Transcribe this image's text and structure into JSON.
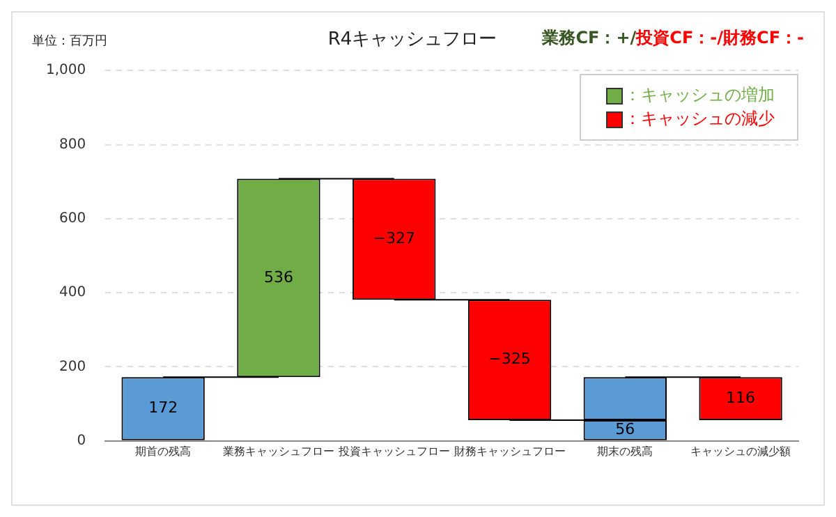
{
  "chart_data": {
    "type": "bar",
    "title": "R4キャッシュフロー",
    "ylabel": "単位：百万円",
    "annotations": [
      "業務CF：+/投資CF：-/財務CF：-"
    ],
    "categories": [
      "期首の残高",
      "業務キャッシュフロー",
      "投資キャッシュフロー",
      "財務キャッシュフロー",
      "期末の残高",
      "キャッシュの減少額"
    ],
    "series": [
      {
        "color": "#5b9bd5",
        "values": [
          172,
          null,
          null,
          null,
          56,
          null
        ],
        "base": [
          0,
          null,
          null,
          null,
          0,
          null
        ],
        "value_labels": [
          "172",
          null,
          null,
          null,
          "56",
          null
        ]
      },
      {
        "name": "：キャッシュの増加",
        "color": "#70ad47",
        "values": [
          null,
          536,
          null,
          null,
          null,
          null
        ],
        "base": [
          null,
          172,
          null,
          null,
          null,
          null
        ],
        "value_labels": [
          null,
          "536",
          null,
          null,
          null,
          null
        ]
      },
      {
        "name": "：キャッシュの減少",
        "color": "#ff0000",
        "values": [
          null,
          null,
          -327,
          -325,
          null,
          116
        ],
        "base": [
          null,
          null,
          708,
          381,
          null,
          56
        ],
        "value_labels": [
          null,
          null,
          "−327",
          "−325",
          null,
          "116"
        ]
      },
      {
        "color": "#5b9bd5",
        "values": [
          null,
          null,
          null,
          null,
          116,
          null
        ],
        "base": [
          null,
          null,
          null,
          null,
          56,
          null
        ]
      },
      {
        "type": "line",
        "color": "#000000",
        "values": [
          172,
          172,
          null,
          null,
          null,
          null
        ]
      },
      {
        "type": "line",
        "color": "#000000",
        "values": [
          null,
          708,
          708,
          null,
          null,
          null
        ]
      },
      {
        "type": "line",
        "color": "#000000",
        "values": [
          null,
          null,
          381,
          381,
          null,
          null
        ]
      },
      {
        "type": "line",
        "color": "#000000",
        "values": [
          null,
          null,
          null,
          56,
          56,
          null
        ]
      },
      {
        "type": "line",
        "color": "#000000",
        "values": [
          null,
          null,
          null,
          null,
          172,
          172
        ]
      }
    ],
    "ylim": [
      0,
      1000
    ],
    "yticks": [
      0,
      200,
      400,
      600,
      800,
      {
        "value": 1000,
        "label": "1,000"
      }
    ],
    "grid": "y",
    "legend": "top right"
  }
}
